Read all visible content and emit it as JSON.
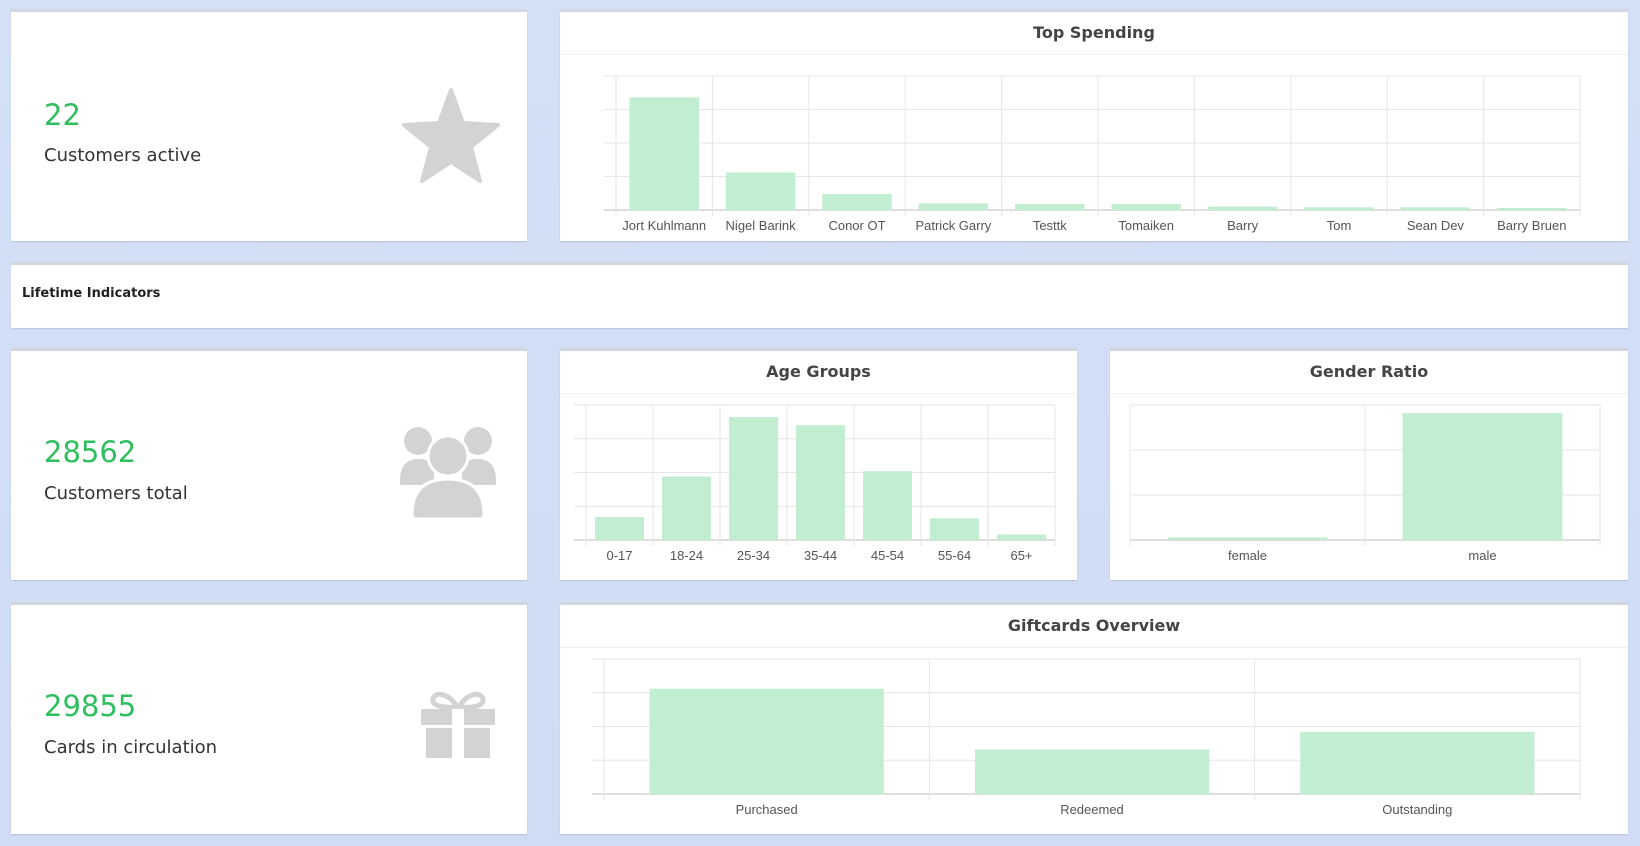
{
  "stats": [
    {
      "value": "22",
      "label": "Customers active",
      "icon": "star-icon"
    },
    {
      "value": "28562",
      "label": "Customers total",
      "icon": "users-icon"
    },
    {
      "value": "29855",
      "label": "Cards in circulation",
      "icon": "gift-icon"
    }
  ],
  "section": {
    "title": "Lifetime Indicators"
  },
  "colors": {
    "accent": "#2fbf5e",
    "bar": "#c1edd0",
    "icon": "#d3d3d3"
  },
  "chart_data": [
    {
      "id": "top_spending",
      "type": "bar",
      "title": "Top Spending",
      "categories": [
        "Jort Kuhlmann",
        "Nigel Barink",
        "Conor OT",
        "Patrick Garry",
        "Testtk",
        "Tomaiken",
        "Barry",
        "Tom",
        "Sean Dev",
        "Barry Bruen"
      ],
      "values": [
        84,
        28,
        12,
        5,
        4.5,
        4.5,
        2.5,
        2,
        2,
        1.5
      ],
      "ylim": [
        0,
        100
      ],
      "grid": true
    },
    {
      "id": "age_groups",
      "type": "bar",
      "title": "Age Groups",
      "categories": [
        "0-17",
        "18-24",
        "25-34",
        "35-44",
        "45-54",
        "55-64",
        "65+"
      ],
      "values": [
        17,
        47,
        91,
        85,
        51,
        16,
        4
      ],
      "ylim": [
        0,
        100
      ],
      "grid": true
    },
    {
      "id": "gender_ratio",
      "type": "bar",
      "title": "Gender Ratio",
      "categories": [
        "female",
        "male"
      ],
      "values": [
        2,
        94
      ],
      "ylim": [
        0,
        100
      ],
      "grid": true
    },
    {
      "id": "giftcards_overview",
      "type": "bar",
      "title": "Giftcards Overview",
      "categories": [
        "Purchased",
        "Redeemed",
        "Outstanding"
      ],
      "values": [
        78,
        33,
        46
      ],
      "ylim": [
        0,
        100
      ],
      "grid": true
    }
  ]
}
